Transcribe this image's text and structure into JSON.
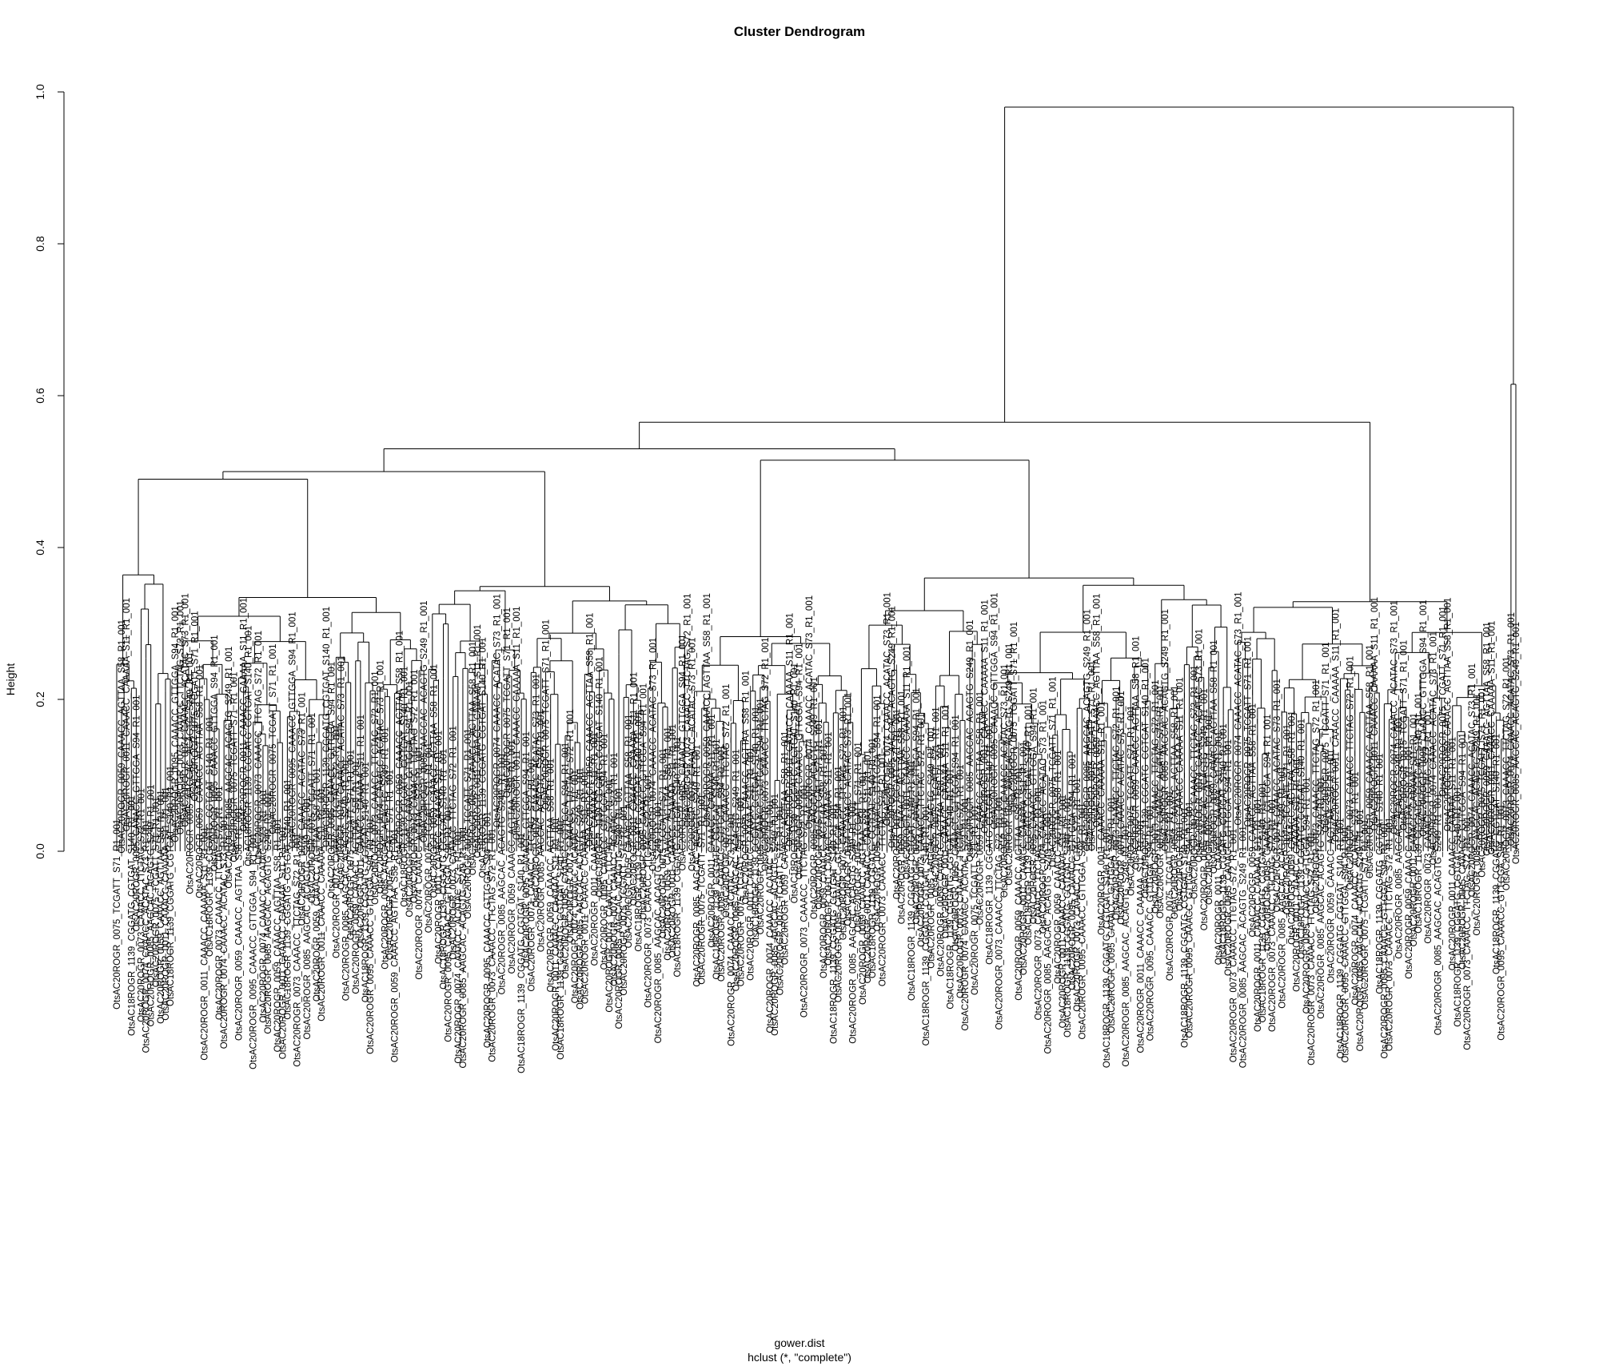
{
  "chart_data": {
    "type": "dendrogram",
    "title": "Cluster Dendrogram",
    "ylabel": "Height",
    "xlabel": "gower.dist",
    "sublabel": "hclust (*, \"complete\")",
    "ylim": [
      0,
      1.0
    ],
    "yticks": [
      "0.0",
      "0.2",
      "0.4",
      "0.6",
      "0.8",
      "1.0"
    ],
    "grid": false,
    "legend": "none",
    "line_color": "#000000",
    "merges": [
      {
        "height": 0.98,
        "children": [
          "main-cluster",
          "right-outlier-pair"
        ]
      },
      {
        "height": 0.615,
        "children": [
          "OtsAC20ROGR_0074_CAAACC_ACATAC_S73_R1_001",
          "OtsAC20ROGR_0085_AAGCAC_ACAGTG_S249_R1_001"
        ]
      },
      {
        "height": 0.565,
        "children": [
          "left-group",
          "center-right-group"
        ]
      },
      {
        "height": 0.53,
        "children": [
          "center-group",
          "right-group"
        ]
      },
      {
        "height": 0.515,
        "children": [
          "center-left-group",
          "center-right-subgroup"
        ]
      },
      {
        "height": 0.5,
        "children": [
          "left-subgroup-a",
          "left-subgroup-b"
        ]
      },
      {
        "height": 0.465,
        "children": [
          "right-subgroup-a",
          "right-subgroup-b"
        ]
      },
      {
        "height": 0.47,
        "children": [
          "OtsAC20ROGR_0075_TCGATT_S71_R1_001",
          "small-left-cluster"
        ]
      }
    ],
    "visible_leaf_labels": [
      "OtsAC20ROGR_0075_TCGATT_S71_R1_001",
      "OtsAC20ROGR_0059_CAAACC_AGTTAA_S58_R1_001",
      "OtsAC20ROGR_0011_CAAACC_CAAAAA_S11_R1_001",
      "OtsAC18ROGR_1139_CGGATG_CGTGAT_S140_R1_001",
      "OtsAC20ROGR_0095_CAAACC_GTTGGA_S94_R1_001",
      "OtsAC20ROGR_0073_CAAACC_TTCTAG_S72_R1_001",
      "OtsAC20ROGR_0074_CAAACC_ACATAC_S73_R1_001",
      "OtsAC20ROGR_0085_AAGCAC_ACAGTG_S249_R1_001"
    ]
  }
}
